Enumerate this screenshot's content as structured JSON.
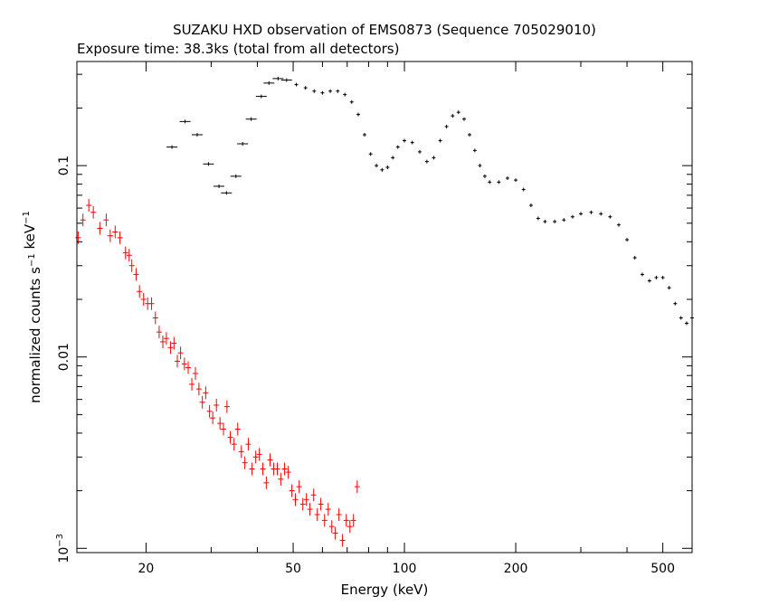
{
  "chart_data": {
    "type": "scatter",
    "title": "SUZAKU HXD observation of EMS0873 (Sequence 705029010)",
    "subtitle": "Exposure time: 38.3ks (total from all detectors)",
    "xlabel": "Energy (keV)",
    "ylabel": "normalized counts s^-1 keV^-1",
    "xscale": "log",
    "yscale": "log",
    "xlim": [
      13,
      600
    ],
    "ylim": [
      0.00095,
      0.35
    ],
    "grid": false,
    "x_ticks": [
      {
        "value": 20,
        "label": "20"
      },
      {
        "value": 50,
        "label": "50"
      },
      {
        "value": 100,
        "label": "100"
      },
      {
        "value": 200,
        "label": "200"
      },
      {
        "value": 500,
        "label": "500"
      }
    ],
    "y_ticks": [
      {
        "value": 0.1,
        "label": "0.1"
      },
      {
        "value": 0.01,
        "label": "0.01"
      },
      {
        "value": 0.001,
        "label": "10",
        "sup": "−3"
      }
    ],
    "series": [
      {
        "color": "#ff0000",
        "points": [
          [
            13.1,
            0.042
          ],
          [
            13.5,
            0.052
          ],
          [
            14.0,
            0.062
          ],
          [
            14.4,
            0.057
          ],
          [
            15.0,
            0.047
          ],
          [
            15.6,
            0.052
          ],
          [
            16.0,
            0.043
          ],
          [
            16.5,
            0.045
          ],
          [
            17.0,
            0.042
          ],
          [
            17.6,
            0.035
          ],
          [
            18.0,
            0.034
          ],
          [
            18.3,
            0.03
          ],
          [
            18.8,
            0.027
          ],
          [
            19.2,
            0.022
          ],
          [
            19.7,
            0.02
          ],
          [
            20.2,
            0.019
          ],
          [
            20.7,
            0.019
          ],
          [
            21.2,
            0.016
          ],
          [
            21.7,
            0.0135
          ],
          [
            22.2,
            0.012
          ],
          [
            22.7,
            0.0125
          ],
          [
            23.3,
            0.0112
          ],
          [
            23.8,
            0.0118
          ],
          [
            24.3,
            0.0095
          ],
          [
            24.8,
            0.0105
          ],
          [
            25.4,
            0.0092
          ],
          [
            26.0,
            0.0088
          ],
          [
            26.6,
            0.0072
          ],
          [
            27.2,
            0.0082
          ],
          [
            27.8,
            0.0068
          ],
          [
            28.4,
            0.0058
          ],
          [
            29.0,
            0.0065
          ],
          [
            29.7,
            0.0052
          ],
          [
            30.3,
            0.0048
          ],
          [
            31.0,
            0.0056
          ],
          [
            31.7,
            0.0045
          ],
          [
            32.4,
            0.0042
          ],
          [
            33.1,
            0.0055
          ],
          [
            33.8,
            0.0038
          ],
          [
            34.6,
            0.0035
          ],
          [
            35.4,
            0.0042
          ],
          [
            36.2,
            0.0032
          ],
          [
            37.0,
            0.0028
          ],
          [
            37.8,
            0.0035
          ],
          [
            38.7,
            0.0026
          ],
          [
            39.6,
            0.003
          ],
          [
            40.5,
            0.0031
          ],
          [
            41.4,
            0.0026
          ],
          [
            42.3,
            0.0022
          ],
          [
            43.3,
            0.0029
          ],
          [
            44.3,
            0.0026
          ],
          [
            45.3,
            0.0026
          ],
          [
            46.3,
            0.0023
          ],
          [
            47.4,
            0.0026
          ],
          [
            48.5,
            0.0025
          ],
          [
            49.6,
            0.002
          ],
          [
            50.7,
            0.0018
          ],
          [
            51.9,
            0.0021
          ],
          [
            53.1,
            0.0017
          ],
          [
            54.3,
            0.0018
          ],
          [
            55.5,
            0.0016
          ],
          [
            56.8,
            0.0019
          ],
          [
            58.1,
            0.0015
          ],
          [
            59.4,
            0.0017
          ],
          [
            60.8,
            0.0014
          ],
          [
            62.2,
            0.0016
          ],
          [
            63.6,
            0.0013
          ],
          [
            65.0,
            0.0012
          ],
          [
            66.5,
            0.0015
          ],
          [
            68.0,
            0.0011
          ],
          [
            69.6,
            0.0014
          ],
          [
            71.2,
            0.0013
          ],
          [
            72.8,
            0.0014
          ],
          [
            74.5,
            0.0021
          ]
        ]
      },
      {
        "color": "#000000",
        "points": [
          [
            23.5,
            0.125
          ],
          [
            25.5,
            0.17
          ],
          [
            27.5,
            0.145
          ],
          [
            29.5,
            0.102
          ],
          [
            31.5,
            0.078
          ],
          [
            33.0,
            0.072
          ],
          [
            35.0,
            0.088
          ],
          [
            36.5,
            0.13
          ],
          [
            38.5,
            0.175
          ],
          [
            41.0,
            0.23
          ],
          [
            43.0,
            0.27
          ],
          [
            45.5,
            0.285
          ],
          [
            48.0,
            0.28
          ],
          [
            51.0,
            0.265
          ],
          [
            54.0,
            0.255
          ],
          [
            57.0,
            0.245
          ],
          [
            60.0,
            0.24
          ],
          [
            63.0,
            0.245
          ],
          [
            66.0,
            0.245
          ],
          [
            69.0,
            0.235
          ],
          [
            72.0,
            0.215
          ],
          [
            75.0,
            0.185
          ],
          [
            78.0,
            0.145
          ],
          [
            81.0,
            0.115
          ],
          [
            84.0,
            0.1
          ],
          [
            87.0,
            0.095
          ],
          [
            90.0,
            0.098
          ],
          [
            93.0,
            0.11
          ],
          [
            96.0,
            0.125
          ],
          [
            100.0,
            0.135
          ],
          [
            105.0,
            0.132
          ],
          [
            110.0,
            0.118
          ],
          [
            115.0,
            0.105
          ],
          [
            120.0,
            0.11
          ],
          [
            125.0,
            0.135
          ],
          [
            130.0,
            0.16
          ],
          [
            135.0,
            0.182
          ],
          [
            140.0,
            0.19
          ],
          [
            145.0,
            0.175
          ],
          [
            150.0,
            0.145
          ],
          [
            155.0,
            0.12
          ],
          [
            160.0,
            0.1
          ],
          [
            165.0,
            0.088
          ],
          [
            170.0,
            0.082
          ],
          [
            180.0,
            0.082
          ],
          [
            190.0,
            0.086
          ],
          [
            200.0,
            0.084
          ],
          [
            210.0,
            0.075
          ],
          [
            220.0,
            0.062
          ],
          [
            230.0,
            0.053
          ],
          [
            240.0,
            0.051
          ],
          [
            255.0,
            0.051
          ],
          [
            270.0,
            0.052
          ],
          [
            285.0,
            0.054
          ],
          [
            300.0,
            0.056
          ],
          [
            320.0,
            0.057
          ],
          [
            340.0,
            0.056
          ],
          [
            360.0,
            0.054
          ],
          [
            380.0,
            0.049
          ],
          [
            400.0,
            0.041
          ],
          [
            420.0,
            0.033
          ],
          [
            440.0,
            0.027
          ],
          [
            460.0,
            0.025
          ],
          [
            480.0,
            0.026
          ],
          [
            500.0,
            0.026
          ],
          [
            520.0,
            0.023
          ],
          [
            540.0,
            0.019
          ],
          [
            560.0,
            0.016
          ],
          [
            580.0,
            0.015
          ],
          [
            600.0,
            0.016
          ]
        ]
      }
    ]
  }
}
